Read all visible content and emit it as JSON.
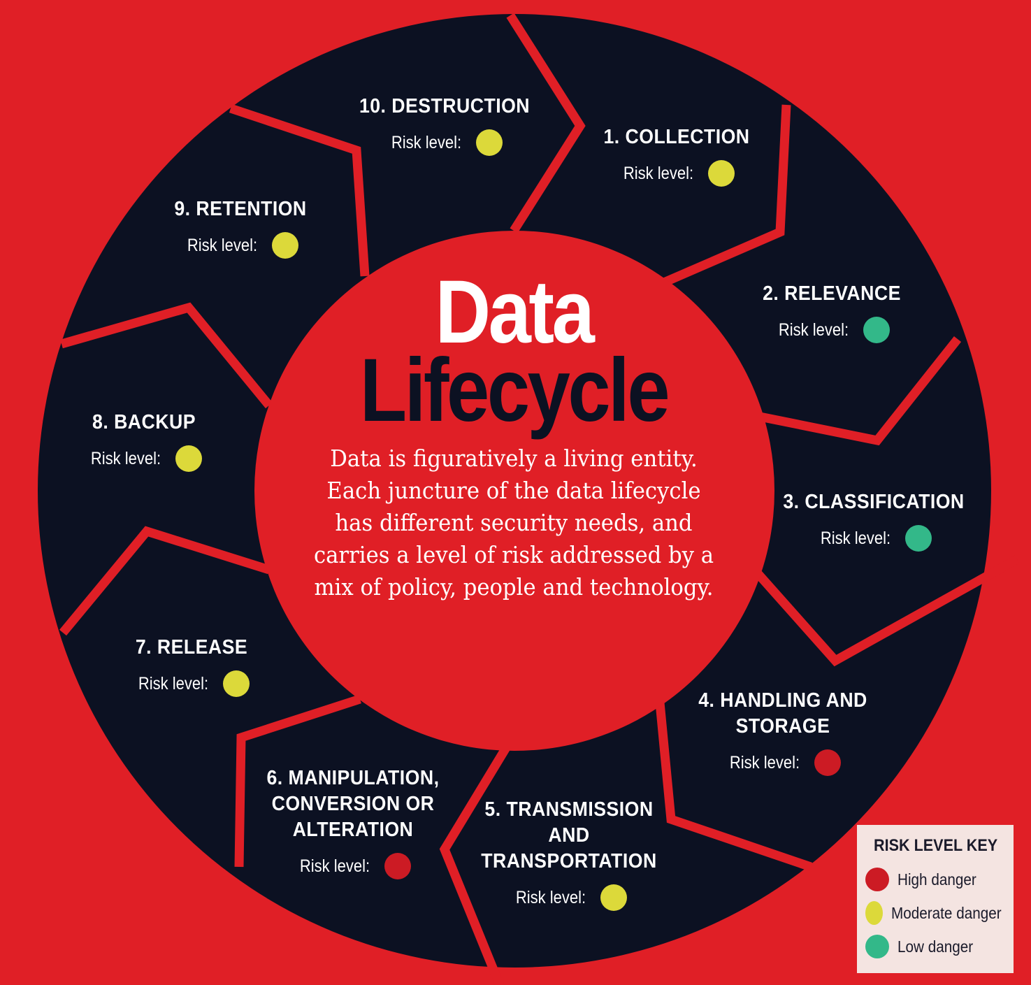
{
  "title_line1": "Data",
  "title_line2": "Lifecycle",
  "description": "Data is figuratively a living entity. Each juncture of the data lifecycle has different security needs, and carries a level of risk addressed by a mix of policy, people and technology.",
  "colors": {
    "background": "#e01f26",
    "wheel": "#0c1122",
    "high": "#cc1b24",
    "moderate": "#dcd93a",
    "low": "#33b889"
  },
  "stages": [
    {
      "title_lines": [
        "1. COLLECTION"
      ],
      "risk_label": "Risk level:",
      "risk": "moderate"
    },
    {
      "title_lines": [
        "2. RELEVANCE"
      ],
      "risk_label": "Risk level:",
      "risk": "low"
    },
    {
      "title_lines": [
        "3. CLASSIFICATION"
      ],
      "risk_label": "Risk level:",
      "risk": "low"
    },
    {
      "title_lines": [
        "4. HANDLING AND",
        "STORAGE"
      ],
      "risk_label": "Risk level:",
      "risk": "high"
    },
    {
      "title_lines": [
        "5. TRANSMISSION",
        "AND",
        "TRANSPORTATION"
      ],
      "risk_label": "Risk level:",
      "risk": "moderate"
    },
    {
      "title_lines": [
        "6. MANIPULATION,",
        "CONVERSION OR",
        "ALTERATION"
      ],
      "risk_label": "Risk level:",
      "risk": "high"
    },
    {
      "title_lines": [
        "7. RELEASE"
      ],
      "risk_label": "Risk level:",
      "risk": "moderate"
    },
    {
      "title_lines": [
        "8. BACKUP"
      ],
      "risk_label": "Risk level:",
      "risk": "moderate"
    },
    {
      "title_lines": [
        "9. RETENTION"
      ],
      "risk_label": "Risk level:",
      "risk": "moderate"
    },
    {
      "title_lines": [
        "10. DESTRUCTION"
      ],
      "risk_label": "Risk level:",
      "risk": "moderate"
    }
  ],
  "legend": {
    "title": "RISK LEVEL KEY",
    "items": [
      {
        "label": "High danger",
        "risk": "high"
      },
      {
        "label": "Moderate danger",
        "risk": "moderate"
      },
      {
        "label": "Low danger",
        "risk": "low"
      }
    ]
  }
}
